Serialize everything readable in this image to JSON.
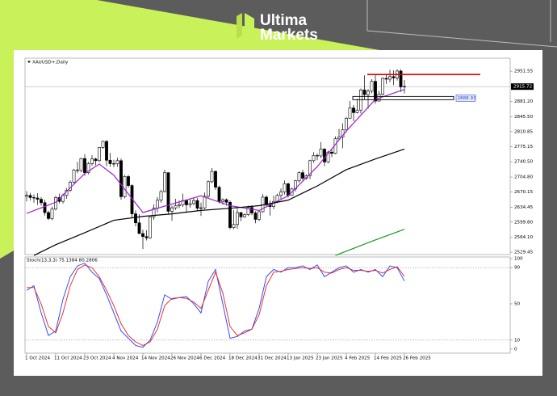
{
  "brand": {
    "line1": "Ultima",
    "line2": "Markets"
  },
  "chart_data": [
    {
      "type": "candlestick",
      "title": "XAUUSD+,Daily",
      "categories": [
        "1 Oct 2024",
        null,
        null,
        null,
        null,
        null,
        null,
        null,
        "11 Oct 2024",
        null,
        null,
        null,
        null,
        null,
        null,
        null,
        "23 Oct 2024",
        null,
        null,
        null,
        null,
        null,
        null,
        null,
        "4 Nov 2024",
        null,
        null,
        null,
        null,
        null,
        null,
        null,
        "14 Nov 2024",
        null,
        null,
        null,
        null,
        null,
        null,
        null,
        "26 Nov 2024",
        null,
        null,
        null,
        null,
        null,
        null,
        null,
        "6 Dec 2024",
        null,
        null,
        null,
        null,
        null,
        null,
        null,
        "18 Dec 2024",
        null,
        null,
        null,
        null,
        null,
        null,
        null,
        "31 Dec 2024",
        null,
        null,
        null,
        null,
        null,
        null,
        null,
        "13 Jan 2025",
        null,
        null,
        null,
        null,
        null,
        null,
        null,
        "23 Jan 2025",
        null,
        null,
        null,
        null,
        null,
        null,
        null,
        "4 Feb 2025",
        null,
        null,
        null,
        null,
        null,
        null,
        null,
        "14 Feb 2025",
        null,
        null,
        null,
        null,
        null,
        null,
        null,
        "26 Feb 2025"
      ],
      "open": [
        2660,
        2662,
        2657,
        2656,
        2653,
        2645,
        2622,
        2608,
        2630,
        2657,
        2648,
        2662,
        2674,
        2693,
        2721,
        2720,
        2748,
        2715,
        2736,
        2747,
        2743,
        2774,
        2788,
        2744,
        2736,
        2736,
        2743,
        2659,
        2706,
        2685,
        2619,
        2598,
        2573,
        2566,
        2563,
        2612,
        2632,
        2651,
        2671,
        2715,
        2625,
        2633,
        2638,
        2640,
        2650,
        2640,
        2643,
        2650,
        2632,
        2633,
        2660,
        2694,
        2718,
        2681,
        2648,
        2652,
        2646,
        2587,
        2594,
        2622,
        2612,
        2617,
        2634,
        2621,
        2606,
        2624,
        2658,
        2640,
        2636,
        2648,
        2662,
        2670,
        2689,
        2662,
        2677,
        2696,
        2715,
        2702,
        2708,
        2743,
        2755,
        2754,
        2770,
        2740,
        2763,
        2760,
        2794,
        2798,
        2815,
        2842,
        2866,
        2855,
        2861,
        2908,
        2897,
        2905,
        2928,
        2882,
        2898,
        2935,
        2933,
        2939,
        2936,
        2952,
        2915
      ],
      "high": [
        2672,
        2668,
        2664,
        2667,
        2658,
        2652,
        2626,
        2636,
        2661,
        2666,
        2666,
        2679,
        2697,
        2724,
        2740,
        2750,
        2758,
        2740,
        2756,
        2750,
        2775,
        2790,
        2791,
        2761,
        2745,
        2750,
        2748,
        2710,
        2710,
        2688,
        2627,
        2618,
        2582,
        2581,
        2615,
        2641,
        2658,
        2675,
        2722,
        2716,
        2638,
        2654,
        2650,
        2666,
        2652,
        2654,
        2657,
        2656,
        2645,
        2669,
        2697,
        2726,
        2720,
        2685,
        2655,
        2655,
        2650,
        2628,
        2632,
        2623,
        2620,
        2638,
        2639,
        2625,
        2628,
        2665,
        2662,
        2650,
        2661,
        2666,
        2678,
        2697,
        2692,
        2680,
        2698,
        2718,
        2722,
        2711,
        2745,
        2763,
        2760,
        2786,
        2772,
        2766,
        2770,
        2800,
        2817,
        2830,
        2845,
        2882,
        2873,
        2887,
        2911,
        2942,
        2910,
        2933,
        2945,
        2906,
        2937,
        2946,
        2955,
        2954,
        2956,
        2956,
        2931
      ],
      "low": [
        2648,
        2650,
        2645,
        2640,
        2638,
        2615,
        2604,
        2604,
        2627,
        2643,
        2643,
        2654,
        2670,
        2690,
        2714,
        2716,
        2708,
        2711,
        2731,
        2732,
        2740,
        2771,
        2730,
        2729,
        2728,
        2729,
        2652,
        2655,
        2680,
        2610,
        2590,
        2572,
        2537,
        2557,
        2561,
        2605,
        2622,
        2645,
        2669,
        2617,
        2603,
        2628,
        2632,
        2635,
        2622,
        2633,
        2639,
        2626,
        2614,
        2630,
        2655,
        2690,
        2675,
        2643,
        2640,
        2638,
        2583,
        2583,
        2584,
        2602,
        2610,
        2614,
        2616,
        2597,
        2602,
        2622,
        2635,
        2615,
        2630,
        2644,
        2654,
        2664,
        2657,
        2661,
        2671,
        2692,
        2697,
        2699,
        2700,
        2738,
        2744,
        2749,
        2730,
        2737,
        2751,
        2758,
        2791,
        2772,
        2809,
        2841,
        2835,
        2853,
        2853,
        2885,
        2864,
        2900,
        2876,
        2881,
        2895,
        2922,
        2926,
        2919,
        2930,
        2903,
        2900
      ],
      "close": [
        2662,
        2657,
        2656,
        2653,
        2645,
        2622,
        2608,
        2630,
        2657,
        2648,
        2662,
        2674,
        2693,
        2721,
        2720,
        2748,
        2715,
        2736,
        2747,
        2743,
        2774,
        2788,
        2744,
        2736,
        2736,
        2743,
        2659,
        2706,
        2685,
        2619,
        2598,
        2573,
        2566,
        2563,
        2612,
        2632,
        2651,
        2671,
        2715,
        2625,
        2633,
        2638,
        2640,
        2650,
        2640,
        2643,
        2650,
        2632,
        2633,
        2660,
        2694,
        2718,
        2681,
        2648,
        2652,
        2646,
        2587,
        2594,
        2622,
        2612,
        2617,
        2634,
        2621,
        2606,
        2624,
        2658,
        2640,
        2636,
        2648,
        2662,
        2670,
        2689,
        2662,
        2677,
        2696,
        2715,
        2702,
        2708,
        2743,
        2755,
        2754,
        2770,
        2740,
        2763,
        2760,
        2794,
        2798,
        2815,
        2842,
        2866,
        2855,
        2861,
        2908,
        2897,
        2905,
        2928,
        2882,
        2898,
        2935,
        2933,
        2939,
        2936,
        2952,
        2915,
        2916
      ],
      "up_color": "#ffffff",
      "down_color": "#000000",
      "edge_color": "#000000",
      "overlays": [
        {
          "color": "#a020d0",
          "x": [
            0,
            8,
            16,
            20,
            24,
            32,
            40,
            48,
            56,
            64,
            72,
            80,
            88,
            96,
            104
          ],
          "values": [
            2620,
            2646,
            2713,
            2735,
            2709,
            2622,
            2642,
            2661,
            2638,
            2627,
            2661,
            2729,
            2812,
            2886,
            2909
          ]
        },
        {
          "color": "#000000",
          "x": [
            2,
            8,
            16,
            24,
            32,
            40,
            48,
            56,
            64,
            72,
            80,
            88,
            96,
            104
          ],
          "values": [
            2522,
            2547,
            2575,
            2604,
            2613,
            2619,
            2627,
            2632,
            2638,
            2651,
            2684,
            2722,
            2747,
            2770
          ]
        },
        {
          "color": "#1a9a1a",
          "x": [
            85,
            95,
            104
          ],
          "values": [
            2522,
            2555,
            2583
          ]
        }
      ],
      "hlines": [
        {
          "value": 2944,
          "color": "#e00000"
        },
        {
          "value": 2888.93,
          "color": "#000000"
        }
      ],
      "last_price": 2915.72,
      "ylim": [
        2524,
        2982
      ],
      "yticks": [
        2951.55,
        {
          "value": 2881.2,
          "label": "2881.20"
        },
        {
          "value": 2845.5,
          "label": "2845.50"
        },
        2810.85,
        2775.15,
        {
          "value": 2740.5,
          "label": "2740.50"
        },
        {
          "value": 2704.8,
          "label": "2704.80"
        },
        2670.15,
        2634.45,
        {
          "value": 2599.8,
          "label": "2599.80"
        },
        {
          "value": 2564.1,
          "label": "2564.10"
        },
        2529.45
      ]
    },
    {
      "type": "line",
      "title": "Stoch(13,3,3) 75.1384 80.2806",
      "x": [
        0,
        2,
        4,
        6,
        8,
        10,
        12,
        14,
        16,
        18,
        20,
        22,
        24,
        26,
        28,
        30,
        32,
        34,
        36,
        38,
        40,
        42,
        44,
        46,
        48,
        50,
        52,
        54,
        56,
        58,
        60,
        62,
        64,
        66,
        68,
        70,
        72,
        74,
        76,
        78,
        80,
        82,
        84,
        86,
        88,
        90,
        92,
        94,
        96,
        98,
        100,
        102,
        104
      ],
      "series": [
        {
          "color": "#1f3fff",
          "values": [
            65,
            70,
            40,
            15,
            20,
            55,
            80,
            92,
            95,
            85,
            78,
            60,
            40,
            20,
            12,
            4,
            2,
            10,
            30,
            60,
            55,
            57,
            58,
            50,
            40,
            75,
            88,
            50,
            12,
            14,
            20,
            22,
            45,
            80,
            88,
            85,
            90,
            90,
            92,
            88,
            93,
            80,
            85,
            90,
            92,
            85,
            88,
            85,
            88,
            80,
            92,
            90,
            75.1384
          ]
        },
        {
          "color": "#e8201c",
          "values": [
            68,
            68,
            50,
            25,
            18,
            40,
            70,
            88,
            93,
            90,
            80,
            65,
            48,
            28,
            15,
            8,
            4,
            8,
            22,
            48,
            56,
            57,
            56,
            52,
            45,
            65,
            85,
            62,
            25,
            15,
            18,
            22,
            38,
            70,
            85,
            86,
            88,
            89,
            90,
            89,
            90,
            85,
            84,
            88,
            90,
            87,
            87,
            86,
            87,
            84,
            88,
            91,
            80.2806
          ]
        }
      ],
      "level_lines": [
        90,
        10
      ],
      "ylim": [
        -4.5,
        101.8
      ],
      "yticks": [
        100,
        90,
        50,
        10,
        0
      ]
    }
  ]
}
